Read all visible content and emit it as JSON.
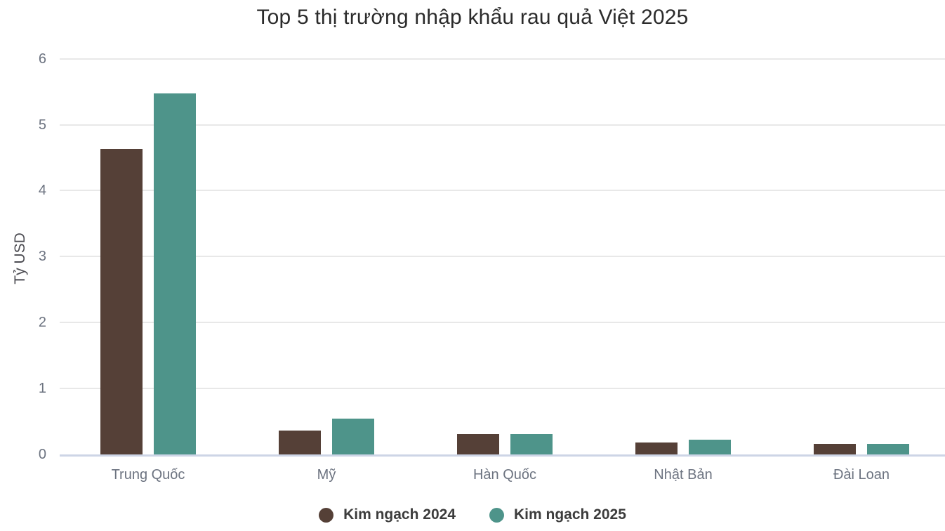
{
  "chart_data": {
    "type": "bar",
    "title": "Top 5 thị trường nhập khẩu rau quả Việt 2025",
    "xlabel": "",
    "ylabel": "Tỷ USD",
    "categories": [
      "Trung Quốc",
      "Mỹ",
      "Hàn Quốc",
      "Nhật Bản",
      "Đài Loan"
    ],
    "series": [
      {
        "name": "Kim ngạch 2024",
        "color": "#554037",
        "values": [
          4.63,
          0.36,
          0.31,
          0.18,
          0.16
        ]
      },
      {
        "name": "Kim ngạch 2025",
        "color": "#4E948A",
        "values": [
          5.47,
          0.54,
          0.31,
          0.22,
          0.16
        ]
      }
    ],
    "ylim": [
      0,
      6
    ],
    "yticks": [
      0,
      1,
      2,
      3,
      4,
      5,
      6
    ],
    "grid": true,
    "legend_position": "bottom"
  },
  "colors": {
    "background": "#ffffff",
    "gridline": "#e8e8e8",
    "axis_baseline": "#cdd5e6",
    "title_text": "#2b2b2b",
    "axis_text": "#6c7380",
    "legend_text": "#3c3c3c"
  }
}
